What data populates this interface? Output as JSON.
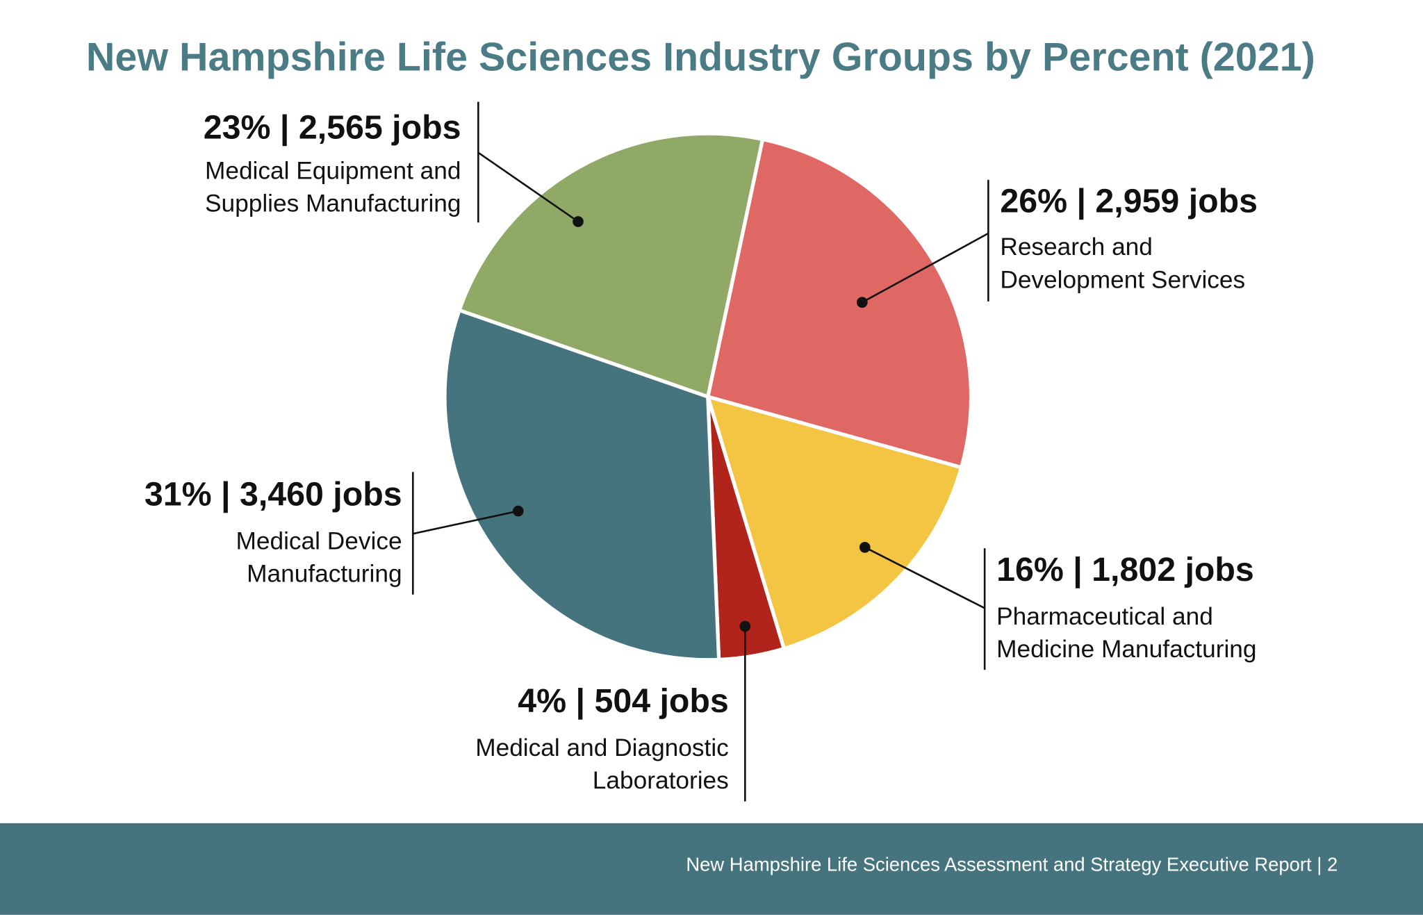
{
  "chart_data": {
    "type": "pie",
    "title": "New Hampshire Life Sciences Industry Groups by Percent (2021)",
    "categories": [
      "Research and Development Services",
      "Pharmaceutical and Medicine Manufacturing",
      "Medical and Diagnostic Laboratories",
      "Medical Device Manufacturing",
      "Medical Equipment and Supplies Manufacturing"
    ],
    "values": [
      26,
      16,
      4,
      31,
      23
    ],
    "value_labels": [
      "26% | 2,959 jobs",
      "16% | 1,802 jobs",
      "4% | 504 jobs",
      "31% | 3,460 jobs",
      "23% | 2,565 jobs"
    ],
    "colors": [
      "#e06864",
      "#f4c443",
      "#b0241c",
      "#45747e",
      "#90a966"
    ]
  },
  "footer": "New Hampshire Life Sciences Assessment and Strategy Executive Report | 2"
}
